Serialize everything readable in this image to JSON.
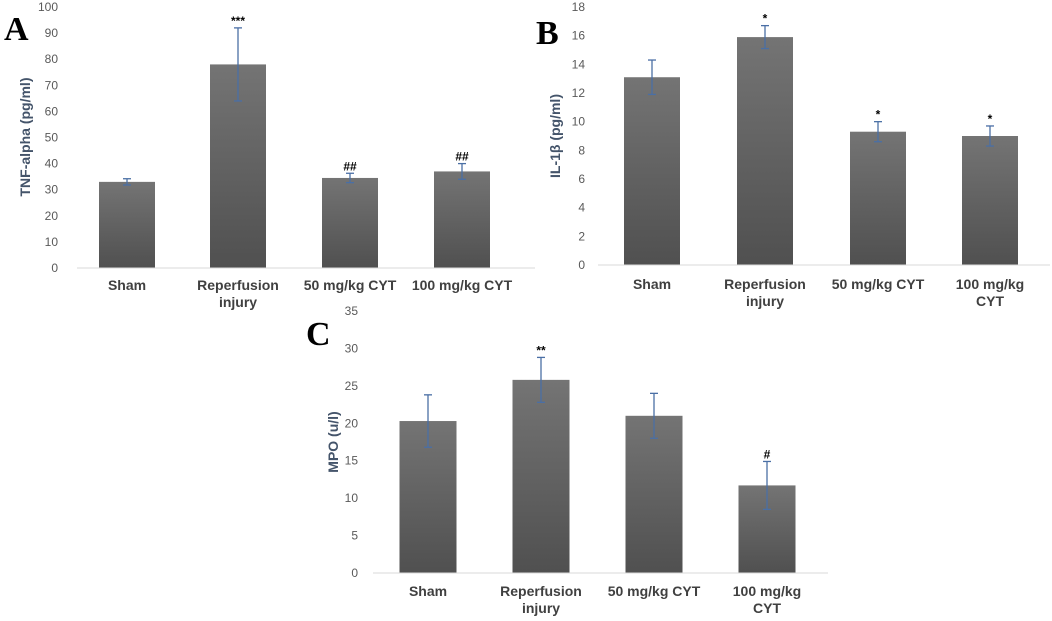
{
  "chart_data": [
    {
      "type": "bar",
      "panel_label": "A",
      "ylabel": "TNF-alpha (pg/ml)",
      "ylim": [
        0,
        100
      ],
      "yticks": [
        0,
        10,
        20,
        30,
        40,
        50,
        60,
        70,
        80,
        90,
        100
      ],
      "categories": [
        [
          "Sham"
        ],
        [
          "Reperfusion",
          "injury"
        ],
        [
          "50 mg/kg CYT"
        ],
        [
          "100 mg/kg CYT"
        ]
      ],
      "values": [
        33,
        78,
        34.5,
        37
      ],
      "errors": [
        1.2,
        14,
        1.8,
        3
      ],
      "annotations": [
        "",
        "***",
        "##",
        "##"
      ],
      "bar_color": "#666666",
      "error_color": "#4a6fa5"
    },
    {
      "type": "bar",
      "panel_label": "B",
      "ylabel": "IL-1β (pg/ml)",
      "ylim": [
        0,
        18
      ],
      "yticks": [
        0,
        2,
        4,
        6,
        8,
        10,
        12,
        14,
        16,
        18
      ],
      "categories": [
        [
          "Sham"
        ],
        [
          "Reperfusion",
          "injury"
        ],
        [
          "50 mg/kg CYT"
        ],
        [
          "100 mg/kg",
          "CYT"
        ]
      ],
      "values": [
        13.1,
        15.9,
        9.3,
        9.0
      ],
      "errors": [
        1.2,
        0.8,
        0.7,
        0.7
      ],
      "annotations": [
        "",
        "*",
        "*",
        "*"
      ],
      "bar_color": "#666666",
      "error_color": "#4a6fa5"
    },
    {
      "type": "bar",
      "panel_label": "C",
      "ylabel": "MPO (u/l)",
      "ylim": [
        0,
        35
      ],
      "yticks": [
        0,
        5,
        10,
        15,
        20,
        25,
        30,
        35
      ],
      "categories": [
        [
          "Sham"
        ],
        [
          "Reperfusion",
          "injury"
        ],
        [
          "50 mg/kg CYT"
        ],
        [
          "100 mg/kg",
          "CYT"
        ]
      ],
      "values": [
        20.3,
        25.8,
        21.0,
        11.7
      ],
      "errors": [
        3.5,
        3.0,
        3.0,
        3.2
      ],
      "annotations": [
        "",
        "**",
        "",
        "#"
      ],
      "bar_color": "#666666",
      "error_color": "#4a6fa5"
    }
  ]
}
